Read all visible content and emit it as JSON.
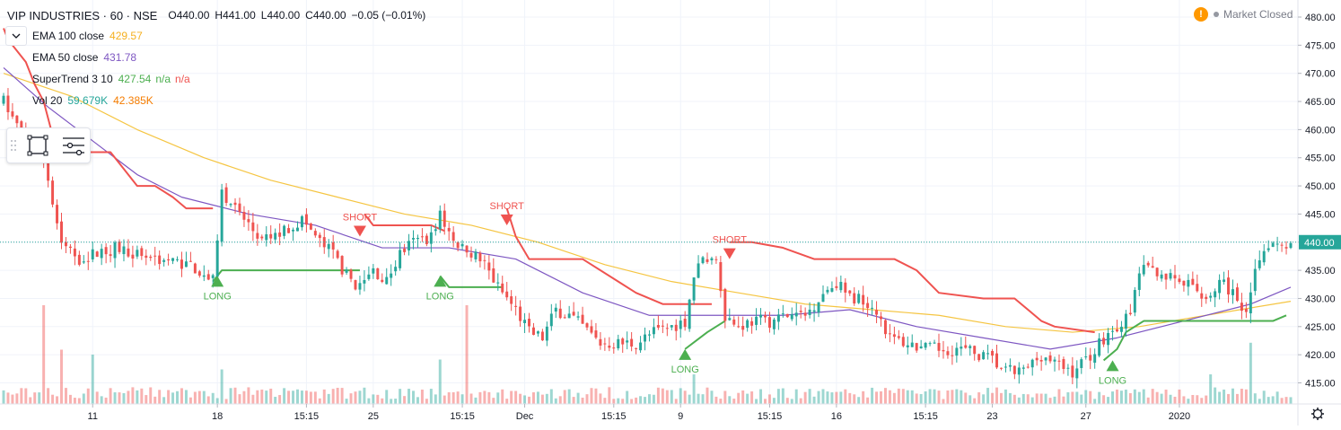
{
  "header": {
    "symbol_title": "VIP INDUSTRIES · 60 · NSE",
    "open": "O440.00",
    "high": "H441.00",
    "low": "L440.00",
    "close": "C440.00",
    "change": "−0.05 (−0.01%)",
    "market_status": "Market Closed"
  },
  "studies": [
    {
      "name": "EMA 100 close",
      "values": [
        "429.57"
      ],
      "colors": [
        "#f5b020"
      ]
    },
    {
      "name": "EMA 50 close",
      "values": [
        "431.78"
      ],
      "colors": [
        "#7e57c2"
      ]
    },
    {
      "name": "SuperTrend 3 10",
      "values": [
        "427.54",
        "n/a",
        "n/a"
      ],
      "colors": [
        "#4caf50",
        "#4caf50",
        "#ef5350"
      ]
    },
    {
      "name": "Vol 20",
      "values": [
        "59.679K",
        "42.385K"
      ],
      "colors": [
        "#26a69a",
        "#f57c00"
      ]
    }
  ],
  "colors": {
    "up": "#26a69a",
    "down": "#ef5350",
    "ema100": "#f5c542",
    "ema50": "#7e57c2",
    "st_up": "#4caf50",
    "st_down": "#ef5350",
    "grid": "#f0f3fa",
    "axis_text": "#131722"
  },
  "chart_data": {
    "type": "candlestick",
    "ylim": [
      413,
      482
    ],
    "y_ticks": [
      "480.00",
      "475.00",
      "470.00",
      "465.00",
      "460.00",
      "455.00",
      "450.00",
      "445.00",
      "440.00",
      "435.00",
      "430.00",
      "425.00",
      "420.00",
      "415.00"
    ],
    "y_tick_values": [
      480,
      475,
      470,
      465,
      460,
      455,
      450,
      445,
      440,
      435,
      430,
      425,
      420,
      415
    ],
    "last_price_label": "440.00",
    "last_price": 440,
    "bar_count": 290,
    "x_ticks": [
      {
        "label": "11",
        "bar": 20
      },
      {
        "label": "18",
        "bar": 48
      },
      {
        "label": "15:15",
        "bar": 68
      },
      {
        "label": "25",
        "bar": 83
      },
      {
        "label": "15:15",
        "bar": 103
      },
      {
        "label": "Dec",
        "bar": 117
      },
      {
        "label": "15:15",
        "bar": 137
      },
      {
        "label": "9",
        "bar": 152
      },
      {
        "label": "15:15",
        "bar": 172
      },
      {
        "label": "16",
        "bar": 187
      },
      {
        "label": "15:15",
        "bar": 207
      },
      {
        "label": "23",
        "bar": 222
      },
      {
        "label": "27",
        "bar": 243
      },
      {
        "label": "2020",
        "bar": 264
      }
    ],
    "price_path": [
      {
        "bar": 0,
        "p": 465
      },
      {
        "bar": 2,
        "p": 462
      },
      {
        "bar": 5,
        "p": 458
      },
      {
        "bar": 9,
        "p": 455
      },
      {
        "bar": 13,
        "p": 440
      },
      {
        "bar": 17,
        "p": 437
      },
      {
        "bar": 21,
        "p": 438
      },
      {
        "bar": 25,
        "p": 439
      },
      {
        "bar": 30,
        "p": 438
      },
      {
        "bar": 35,
        "p": 437
      },
      {
        "bar": 42,
        "p": 436
      },
      {
        "bar": 47,
        "p": 433
      },
      {
        "bar": 49,
        "p": 449
      },
      {
        "bar": 53,
        "p": 445
      },
      {
        "bar": 58,
        "p": 440
      },
      {
        "bar": 63,
        "p": 442
      },
      {
        "bar": 67,
        "p": 444
      },
      {
        "bar": 71,
        "p": 440
      },
      {
        "bar": 74,
        "p": 438
      },
      {
        "bar": 77,
        "p": 434
      },
      {
        "bar": 80,
        "p": 432
      },
      {
        "bar": 83,
        "p": 435
      },
      {
        "bar": 86,
        "p": 433
      },
      {
        "bar": 89,
        "p": 438
      },
      {
        "bar": 92,
        "p": 440
      },
      {
        "bar": 96,
        "p": 441
      },
      {
        "bar": 98,
        "p": 445
      },
      {
        "bar": 101,
        "p": 440
      },
      {
        "bar": 104,
        "p": 439
      },
      {
        "bar": 108,
        "p": 436
      },
      {
        "bar": 111,
        "p": 432
      },
      {
        "bar": 115,
        "p": 428
      },
      {
        "bar": 118,
        "p": 424
      },
      {
        "bar": 121,
        "p": 423
      },
      {
        "bar": 124,
        "p": 428
      },
      {
        "bar": 127,
        "p": 427
      },
      {
        "bar": 130,
        "p": 425
      },
      {
        "bar": 134,
        "p": 422
      },
      {
        "bar": 138,
        "p": 422
      },
      {
        "bar": 142,
        "p": 422
      },
      {
        "bar": 146,
        "p": 424
      },
      {
        "bar": 150,
        "p": 425
      },
      {
        "bar": 153,
        "p": 426
      },
      {
        "bar": 155,
        "p": 434
      },
      {
        "bar": 157,
        "p": 437
      },
      {
        "bar": 160,
        "p": 437
      },
      {
        "bar": 162,
        "p": 427
      },
      {
        "bar": 165,
        "p": 425
      },
      {
        "bar": 168,
        "p": 426
      },
      {
        "bar": 172,
        "p": 426
      },
      {
        "bar": 176,
        "p": 427
      },
      {
        "bar": 180,
        "p": 427
      },
      {
        "bar": 184,
        "p": 431
      },
      {
        "bar": 187,
        "p": 433
      },
      {
        "bar": 190,
        "p": 430
      },
      {
        "bar": 193,
        "p": 430
      },
      {
        "bar": 196,
        "p": 428
      },
      {
        "bar": 199,
        "p": 423
      },
      {
        "bar": 203,
        "p": 422
      },
      {
        "bar": 207,
        "p": 421
      },
      {
        "bar": 211,
        "p": 421
      },
      {
        "bar": 215,
        "p": 421
      },
      {
        "bar": 219,
        "p": 420
      },
      {
        "bar": 222,
        "p": 419
      },
      {
        "bar": 225,
        "p": 417
      },
      {
        "bar": 229,
        "p": 417
      },
      {
        "bar": 233,
        "p": 420
      },
      {
        "bar": 237,
        "p": 418
      },
      {
        "bar": 240,
        "p": 417
      },
      {
        "bar": 244,
        "p": 420
      },
      {
        "bar": 247,
        "p": 423
      },
      {
        "bar": 250,
        "p": 425
      },
      {
        "bar": 253,
        "p": 427
      },
      {
        "bar": 255,
        "p": 435
      },
      {
        "bar": 259,
        "p": 435
      },
      {
        "bar": 263,
        "p": 433
      },
      {
        "bar": 267,
        "p": 432
      },
      {
        "bar": 270,
        "p": 430
      },
      {
        "bar": 273,
        "p": 433
      },
      {
        "bar": 276,
        "p": 431
      },
      {
        "bar": 279,
        "p": 428
      },
      {
        "bar": 281,
        "p": 436
      },
      {
        "bar": 284,
        "p": 440
      },
      {
        "bar": 289,
        "p": 440
      }
    ],
    "ema50": [
      {
        "bar": 0,
        "p": 471
      },
      {
        "bar": 10,
        "p": 464
      },
      {
        "bar": 20,
        "p": 458
      },
      {
        "bar": 30,
        "p": 452
      },
      {
        "bar": 40,
        "p": 448
      },
      {
        "bar": 55,
        "p": 445
      },
      {
        "bar": 70,
        "p": 443
      },
      {
        "bar": 85,
        "p": 439
      },
      {
        "bar": 100,
        "p": 439
      },
      {
        "bar": 115,
        "p": 437
      },
      {
        "bar": 130,
        "p": 431
      },
      {
        "bar": 145,
        "p": 427
      },
      {
        "bar": 160,
        "p": 427
      },
      {
        "bar": 175,
        "p": 427
      },
      {
        "bar": 190,
        "p": 428
      },
      {
        "bar": 205,
        "p": 425
      },
      {
        "bar": 220,
        "p": 423
      },
      {
        "bar": 235,
        "p": 421
      },
      {
        "bar": 250,
        "p": 423
      },
      {
        "bar": 265,
        "p": 426
      },
      {
        "bar": 280,
        "p": 429
      },
      {
        "bar": 289,
        "p": 432
      }
    ],
    "ema100": [
      {
        "bar": 0,
        "p": 470
      },
      {
        "bar": 15,
        "p": 466
      },
      {
        "bar": 30,
        "p": 460
      },
      {
        "bar": 45,
        "p": 455
      },
      {
        "bar": 60,
        "p": 451
      },
      {
        "bar": 75,
        "p": 448
      },
      {
        "bar": 90,
        "p": 445
      },
      {
        "bar": 105,
        "p": 443
      },
      {
        "bar": 120,
        "p": 440
      },
      {
        "bar": 135,
        "p": 436
      },
      {
        "bar": 150,
        "p": 433
      },
      {
        "bar": 165,
        "p": 431
      },
      {
        "bar": 180,
        "p": 429
      },
      {
        "bar": 195,
        "p": 428
      },
      {
        "bar": 210,
        "p": 427
      },
      {
        "bar": 225,
        "p": 425
      },
      {
        "bar": 240,
        "p": 424
      },
      {
        "bar": 255,
        "p": 425
      },
      {
        "bar": 270,
        "p": 427
      },
      {
        "bar": 289,
        "p": 429.5
      }
    ],
    "supertrend": [
      {
        "dir": "down",
        "pts": [
          [
            0,
            478
          ],
          [
            1,
            476
          ],
          [
            3,
            474
          ],
          [
            5,
            472
          ],
          [
            7,
            468
          ],
          [
            9,
            465
          ],
          [
            12,
            456
          ],
          [
            20,
            456
          ],
          [
            24,
            456
          ],
          [
            27,
            453
          ],
          [
            30,
            450
          ],
          [
            34,
            450
          ],
          [
            38,
            448
          ],
          [
            41,
            446
          ],
          [
            47,
            446
          ]
        ]
      },
      {
        "dir": "up",
        "pts": [
          [
            47,
            433
          ],
          [
            49,
            435
          ],
          [
            80,
            435
          ]
        ]
      },
      {
        "dir": "down",
        "pts": [
          [
            81,
            445
          ],
          [
            83,
            443
          ],
          [
            96,
            443
          ],
          [
            99,
            442
          ]
        ]
      },
      {
        "dir": "up",
        "pts": [
          [
            98,
            434
          ],
          [
            100,
            432
          ],
          [
            112,
            432
          ]
        ]
      },
      {
        "dir": "down",
        "pts": [
          [
            113,
            446
          ],
          [
            115,
            441
          ],
          [
            118,
            437
          ],
          [
            130,
            437
          ],
          [
            138,
            433
          ],
          [
            142,
            431
          ],
          [
            148,
            429
          ],
          [
            155,
            429
          ],
          [
            159,
            429
          ]
        ]
      },
      {
        "dir": "up",
        "pts": [
          [
            153,
            421
          ],
          [
            158,
            424
          ],
          [
            162,
            426
          ]
        ]
      },
      {
        "dir": "down",
        "pts": [
          [
            163,
            440
          ],
          [
            168,
            440
          ],
          [
            175,
            439
          ],
          [
            182,
            437
          ],
          [
            200,
            437
          ],
          [
            205,
            435
          ],
          [
            210,
            431
          ],
          [
            220,
            430
          ],
          [
            227,
            430
          ],
          [
            233,
            426
          ],
          [
            236,
            425
          ],
          [
            245,
            424
          ]
        ]
      },
      {
        "dir": "up",
        "pts": [
          [
            247,
            419
          ],
          [
            250,
            421
          ],
          [
            252,
            424
          ],
          [
            256,
            426
          ],
          [
            268,
            426
          ],
          [
            285,
            426
          ],
          [
            288,
            427
          ]
        ]
      }
    ],
    "annotations": [
      {
        "label": "LONG",
        "dir": "up",
        "bar": 48,
        "price": 434
      },
      {
        "label": "SHORT",
        "dir": "down",
        "bar": 80,
        "price": 441
      },
      {
        "label": "LONG",
        "dir": "up",
        "bar": 98,
        "price": 434
      },
      {
        "label": "SHORT",
        "dir": "down",
        "bar": 113,
        "price": 443
      },
      {
        "label": "LONG",
        "dir": "up",
        "bar": 153,
        "price": 421
      },
      {
        "label": "SHORT",
        "dir": "down",
        "bar": 163,
        "price": 437
      },
      {
        "label": "LONG",
        "dir": "up",
        "bar": 249,
        "price": 419
      }
    ],
    "volume_spikes": [
      {
        "bar": 9,
        "v": 1.0
      },
      {
        "bar": 13,
        "v": 0.55
      },
      {
        "bar": 20,
        "v": 0.5
      },
      {
        "bar": 49,
        "v": 0.35
      },
      {
        "bar": 98,
        "v": 0.45
      },
      {
        "bar": 104,
        "v": 1.0
      },
      {
        "bar": 155,
        "v": 0.3
      },
      {
        "bar": 280,
        "v": 0.62
      },
      {
        "bar": 271,
        "v": 0.3
      }
    ]
  }
}
